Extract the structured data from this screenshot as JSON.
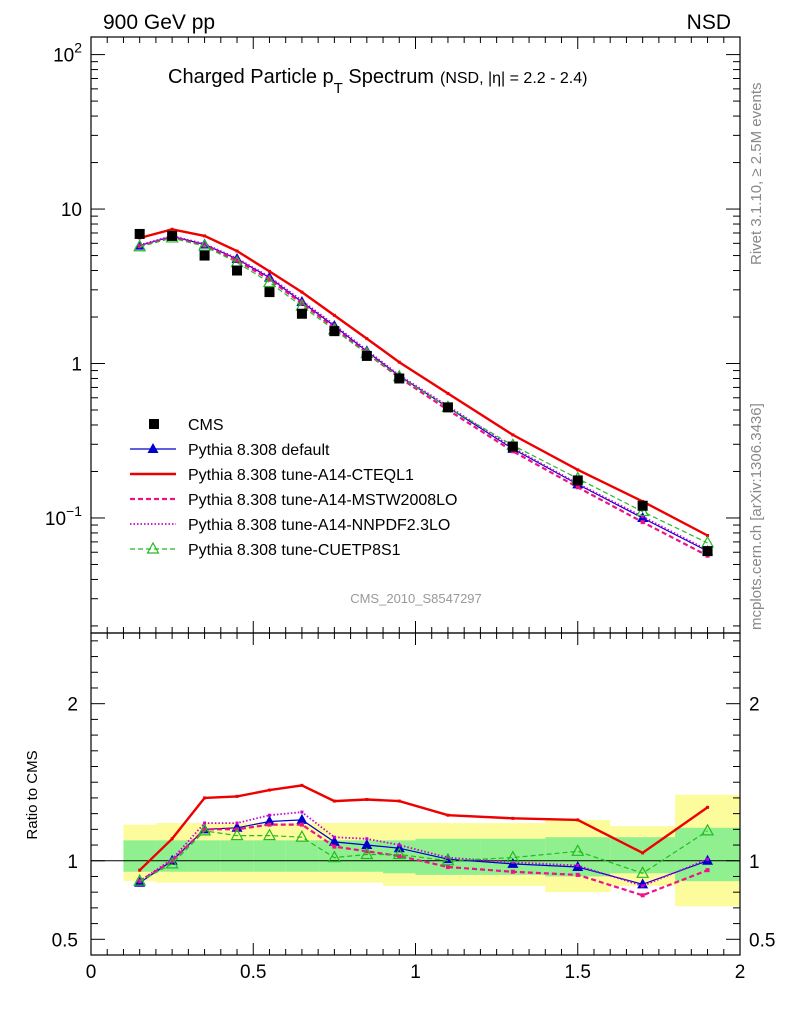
{
  "header": {
    "left": "900 GeV pp",
    "right": "NSD"
  },
  "title": {
    "main_before": "Charged Particle p",
    "main_sub": "T",
    "main_after": " Spectrum",
    "small": "(NSD, |η| = 2.2 - 2.4)"
  },
  "side_labels": {
    "rivet": "Rivet 3.1.10, ≥ 2.5M events",
    "mcplots": "mcplots.cern.ch [arXiv:1306.3436]"
  },
  "analysis_id": "CMS_2010_S8547297",
  "ratio_ylabel": "Ratio to CMS",
  "colors": {
    "cms": "#000000",
    "default": "#0000cc",
    "cteql1": "#ee0000",
    "mstw": "#ee1188",
    "nnpdf": "#cc00cc",
    "cuetp8s1": "#22bb22",
    "band_green": "#90f090",
    "band_yellow": "#fcfc9c"
  },
  "chart_data": {
    "type": "line",
    "x": [
      0.15,
      0.25,
      0.35,
      0.45,
      0.55,
      0.65,
      0.75,
      0.85,
      0.95,
      1.1,
      1.3,
      1.5,
      1.7,
      1.9
    ],
    "xlim": [
      0,
      2
    ],
    "x_ticks": [
      "0",
      "0.5",
      "1",
      "1.5",
      "2"
    ],
    "upper": {
      "yscale": "log",
      "ylim": [
        0.018,
        130
      ],
      "y_ticks": [
        {
          "value": 100,
          "base": "10",
          "exp": "2"
        },
        {
          "value": 10,
          "base": "10",
          "exp": ""
        },
        {
          "value": 1,
          "base": "1",
          "exp": ""
        },
        {
          "value": 0.1,
          "base": "10",
          "exp": "−1"
        }
      ],
      "legend_position": "bottom-left",
      "series": [
        {
          "key": "cms",
          "name": "CMS",
          "style": "data",
          "values": [
            6.9,
            6.7,
            5.0,
            4.0,
            2.9,
            2.1,
            1.62,
            1.12,
            0.8,
            0.52,
            0.29,
            0.175,
            0.12,
            0.061
          ]
        },
        {
          "key": "default",
          "name": "Pythia 8.308 default",
          "style": "solid-tri",
          "values": [
            5.8,
            6.65,
            5.9,
            4.75,
            3.6,
            2.5,
            1.75,
            1.2,
            0.83,
            0.52,
            0.28,
            0.165,
            0.1,
            0.061
          ]
        },
        {
          "key": "cteql1",
          "name": "Pythia 8.308 tune-A14-CTEQL1",
          "style": "solid-thick",
          "values": [
            6.5,
            7.4,
            6.7,
            5.35,
            3.95,
            2.9,
            2.05,
            1.45,
            1.02,
            0.64,
            0.345,
            0.205,
            0.128,
            0.077
          ]
        },
        {
          "key": "mstw",
          "name": "Pythia 8.308 tune-A14-MSTW2008LO",
          "style": "dashed-sq",
          "values": [
            5.75,
            6.55,
            5.8,
            4.65,
            3.5,
            2.45,
            1.7,
            1.17,
            0.81,
            0.5,
            0.27,
            0.158,
            0.094,
            0.057
          ]
        },
        {
          "key": "nnpdf",
          "name": "Pythia 8.308 tune-A14-NNPDF2.3LO",
          "style": "dotted",
          "values": [
            5.85,
            6.7,
            5.95,
            4.8,
            3.65,
            2.55,
            1.78,
            1.22,
            0.84,
            0.53,
            0.285,
            0.167,
            0.102,
            0.062
          ]
        },
        {
          "key": "cuetp8s1",
          "name": "Pythia 8.308 tune-CUETP8S1",
          "style": "dashed-open-tri",
          "values": [
            5.7,
            6.5,
            5.75,
            4.5,
            3.35,
            2.35,
            1.65,
            1.16,
            0.82,
            0.52,
            0.295,
            0.18,
            0.11,
            0.069
          ]
        }
      ]
    },
    "ratio": {
      "ylim": [
        0.4,
        2.45
      ],
      "y_ticks": [
        {
          "value": 0.5,
          "label": "0.5"
        },
        {
          "value": 1,
          "label": "1"
        },
        {
          "value": 2,
          "label": "2"
        }
      ],
      "bands": [
        {
          "x0": 0.1,
          "x1": 0.2,
          "green": [
            0.93,
            1.13
          ],
          "yellow": [
            0.87,
            1.23
          ]
        },
        {
          "x0": 0.2,
          "x1": 0.3,
          "green": [
            0.93,
            1.13
          ],
          "yellow": [
            0.86,
            1.24
          ]
        },
        {
          "x0": 0.3,
          "x1": 0.4,
          "green": [
            0.93,
            1.13
          ],
          "yellow": [
            0.86,
            1.24
          ]
        },
        {
          "x0": 0.4,
          "x1": 0.5,
          "green": [
            0.93,
            1.13
          ],
          "yellow": [
            0.86,
            1.24
          ]
        },
        {
          "x0": 0.5,
          "x1": 0.6,
          "green": [
            0.93,
            1.13
          ],
          "yellow": [
            0.86,
            1.24
          ]
        },
        {
          "x0": 0.6,
          "x1": 0.7,
          "green": [
            0.93,
            1.13
          ],
          "yellow": [
            0.86,
            1.24
          ]
        },
        {
          "x0": 0.7,
          "x1": 0.8,
          "green": [
            0.93,
            1.13
          ],
          "yellow": [
            0.86,
            1.24
          ]
        },
        {
          "x0": 0.8,
          "x1": 0.9,
          "green": [
            0.93,
            1.13
          ],
          "yellow": [
            0.86,
            1.24
          ]
        },
        {
          "x0": 0.9,
          "x1": 1.0,
          "green": [
            0.92,
            1.13
          ],
          "yellow": [
            0.84,
            1.24
          ]
        },
        {
          "x0": 1.0,
          "x1": 1.2,
          "green": [
            0.91,
            1.14
          ],
          "yellow": [
            0.84,
            1.24
          ]
        },
        {
          "x0": 1.2,
          "x1": 1.4,
          "green": [
            0.91,
            1.14
          ],
          "yellow": [
            0.84,
            1.24
          ]
        },
        {
          "x0": 1.4,
          "x1": 1.6,
          "green": [
            0.9,
            1.15
          ],
          "yellow": [
            0.8,
            1.26
          ]
        },
        {
          "x0": 1.6,
          "x1": 1.8,
          "green": [
            0.92,
            1.15
          ],
          "yellow": [
            0.84,
            1.22
          ]
        },
        {
          "x0": 1.8,
          "x1": 2.0,
          "green": [
            0.87,
            1.21
          ],
          "yellow": [
            0.71,
            1.42
          ]
        }
      ],
      "series": [
        {
          "key": "default",
          "style": "solid-tri",
          "values": [
            0.86,
            1.0,
            1.2,
            1.21,
            1.25,
            1.26,
            1.12,
            1.1,
            1.08,
            1.01,
            0.98,
            0.96,
            0.85,
            1.0
          ]
        },
        {
          "key": "cteql1",
          "style": "solid-thick",
          "values": [
            0.94,
            1.14,
            1.4,
            1.41,
            1.45,
            1.48,
            1.38,
            1.39,
            1.38,
            1.29,
            1.27,
            1.26,
            1.05,
            1.34
          ]
        },
        {
          "key": "mstw",
          "style": "dashed-sq",
          "values": [
            0.87,
            1.0,
            1.2,
            1.2,
            1.23,
            1.23,
            1.09,
            1.06,
            1.03,
            0.96,
            0.93,
            0.91,
            0.78,
            0.94
          ]
        },
        {
          "key": "nnpdf",
          "style": "dotted",
          "values": [
            0.87,
            1.01,
            1.24,
            1.24,
            1.29,
            1.31,
            1.15,
            1.14,
            1.1,
            1.02,
            0.99,
            0.97,
            0.84,
            1.01
          ]
        },
        {
          "key": "cuetp8s1",
          "style": "dashed-open-tri",
          "values": [
            0.87,
            0.98,
            1.19,
            1.16,
            1.16,
            1.15,
            1.02,
            1.04,
            1.04,
            1.0,
            1.02,
            1.06,
            0.92,
            1.19
          ]
        }
      ]
    }
  }
}
